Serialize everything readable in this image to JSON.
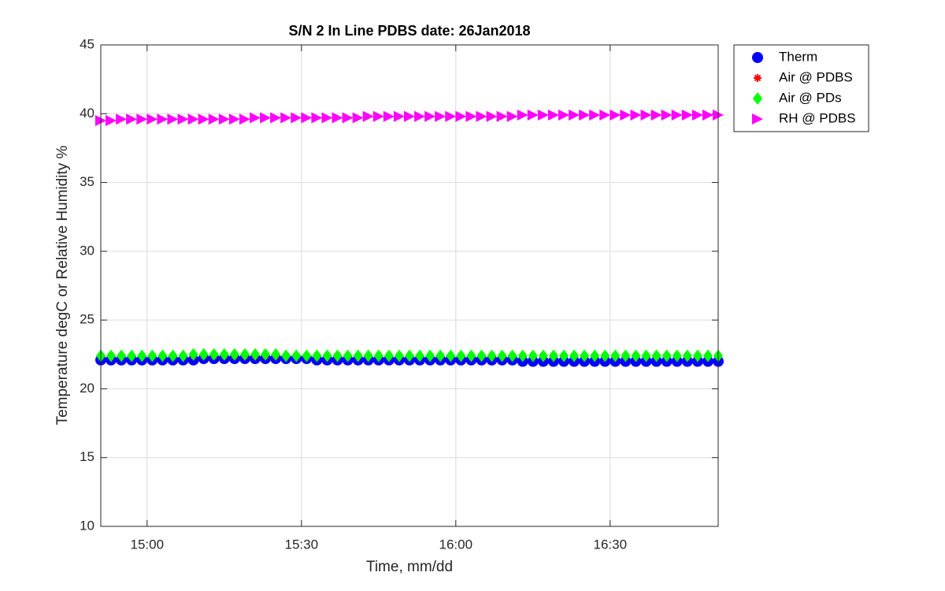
{
  "chart_data": {
    "type": "scatter",
    "title": "S/N 2 In Line PDBS date: 26Jan2018",
    "xlabel": "Time, mm/dd",
    "ylabel": "Temperature degC or Relative Humidity %",
    "x": [
      "14:51",
      "14:53",
      "14:55",
      "14:57",
      "14:59",
      "15:01",
      "15:03",
      "15:05",
      "15:07",
      "15:09",
      "15:11",
      "15:13",
      "15:15",
      "15:17",
      "15:19",
      "15:21",
      "15:23",
      "15:25",
      "15:27",
      "15:29",
      "15:31",
      "15:33",
      "15:35",
      "15:37",
      "15:39",
      "15:41",
      "15:43",
      "15:45",
      "15:47",
      "15:49",
      "15:51",
      "15:53",
      "15:55",
      "15:57",
      "15:59",
      "16:01",
      "16:03",
      "16:05",
      "16:07",
      "16:09",
      "16:11",
      "16:13",
      "16:15",
      "16:17",
      "16:19",
      "16:21",
      "16:23",
      "16:25",
      "16:27",
      "16:29",
      "16:31",
      "16:33",
      "16:35",
      "16:37",
      "16:39",
      "16:41",
      "16:43",
      "16:45",
      "16:47",
      "16:49",
      "16:51"
    ],
    "series": [
      {
        "name": "Therm",
        "color": "#0000ff",
        "marker": "circle",
        "values": [
          22.1,
          22.1,
          22.1,
          22.1,
          22.1,
          22.1,
          22.1,
          22.1,
          22.1,
          22.1,
          22.2,
          22.2,
          22.2,
          22.2,
          22.2,
          22.2,
          22.2,
          22.2,
          22.2,
          22.2,
          22.2,
          22.1,
          22.1,
          22.1,
          22.1,
          22.1,
          22.1,
          22.1,
          22.1,
          22.1,
          22.1,
          22.1,
          22.1,
          22.1,
          22.1,
          22.1,
          22.1,
          22.1,
          22.1,
          22.1,
          22.1,
          22.0,
          22.0,
          22.0,
          22.0,
          22.0,
          22.0,
          22.0,
          22.0,
          22.0,
          22.0,
          22.0,
          22.0,
          22.0,
          22.0,
          22.0,
          22.0,
          22.0,
          22.0,
          22.0,
          22.0
        ]
      },
      {
        "name": "Air @ PDBS",
        "color": "#ff0000",
        "marker": "asterisk",
        "values": [
          22.4,
          22.4,
          22.4,
          22.4,
          22.4,
          22.4,
          22.4,
          22.4,
          22.4,
          22.4,
          22.4,
          22.4,
          22.4,
          22.4,
          22.4,
          22.4,
          22.4,
          22.4,
          22.4,
          22.4,
          22.4,
          22.4,
          22.4,
          22.4,
          22.4,
          22.4,
          22.4,
          22.4,
          22.4,
          22.4,
          22.4,
          22.4,
          22.4,
          22.4,
          22.4,
          22.4,
          22.4,
          22.4,
          22.4,
          22.4,
          22.4,
          22.4,
          22.4,
          22.4,
          22.4,
          22.4,
          22.4,
          22.4,
          22.4,
          22.4,
          22.4,
          22.4,
          22.4,
          22.4,
          22.4,
          22.4,
          22.4,
          22.4,
          22.4,
          22.4,
          22.4
        ]
      },
      {
        "name": "Air @ PDs",
        "color": "#00ff00",
        "marker": "diamond",
        "values": [
          22.4,
          22.4,
          22.4,
          22.4,
          22.4,
          22.4,
          22.4,
          22.4,
          22.4,
          22.5,
          22.5,
          22.5,
          22.5,
          22.5,
          22.5,
          22.5,
          22.5,
          22.5,
          22.4,
          22.4,
          22.4,
          22.4,
          22.4,
          22.4,
          22.4,
          22.4,
          22.4,
          22.4,
          22.4,
          22.4,
          22.4,
          22.4,
          22.4,
          22.4,
          22.4,
          22.4,
          22.4,
          22.4,
          22.4,
          22.4,
          22.4,
          22.4,
          22.4,
          22.4,
          22.4,
          22.4,
          22.4,
          22.4,
          22.4,
          22.4,
          22.4,
          22.4,
          22.4,
          22.4,
          22.4,
          22.4,
          22.4,
          22.4,
          22.4,
          22.4,
          22.4
        ]
      },
      {
        "name": "RH @ PDBS",
        "color": "#ff00ff",
        "marker": "triangle-right",
        "values": [
          39.5,
          39.5,
          39.6,
          39.6,
          39.6,
          39.6,
          39.6,
          39.6,
          39.6,
          39.6,
          39.6,
          39.6,
          39.6,
          39.6,
          39.6,
          39.7,
          39.7,
          39.7,
          39.7,
          39.7,
          39.7,
          39.7,
          39.7,
          39.7,
          39.7,
          39.7,
          39.8,
          39.8,
          39.8,
          39.8,
          39.8,
          39.8,
          39.8,
          39.8,
          39.8,
          39.8,
          39.8,
          39.8,
          39.8,
          39.8,
          39.8,
          39.9,
          39.9,
          39.9,
          39.9,
          39.9,
          39.9,
          39.9,
          39.9,
          39.9,
          39.9,
          39.9,
          39.9,
          39.9,
          39.9,
          39.9,
          39.9,
          39.9,
          39.9,
          39.9,
          39.9
        ]
      }
    ],
    "xlim": [
      "14:51",
      "16:51"
    ],
    "xticks": [
      "15:00",
      "15:30",
      "16:00",
      "16:30"
    ],
    "ylim": [
      10,
      45
    ],
    "yticks": [
      10,
      15,
      20,
      25,
      30,
      35,
      40,
      45
    ],
    "grid": true,
    "legend": "outside-upper-right"
  }
}
